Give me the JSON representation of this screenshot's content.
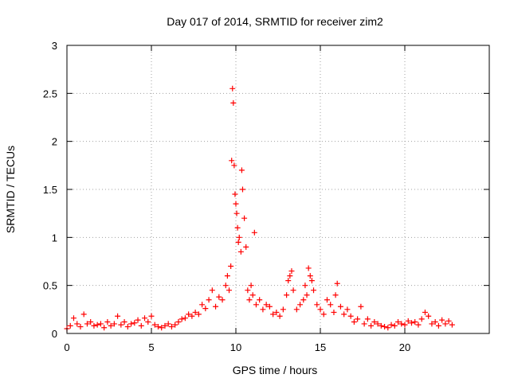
{
  "chart_data": {
    "type": "scatter",
    "title": "Day 017 of 2014, SRMTID for receiver zim2",
    "xlabel": "GPS time / hours",
    "ylabel": "SRMTID / TECUs",
    "xlim": [
      0,
      25
    ],
    "ylim": [
      0,
      3
    ],
    "xticks": [
      0,
      5,
      10,
      15,
      20
    ],
    "xtick_labels": [
      "0",
      "5",
      "10",
      "15",
      "20"
    ],
    "yticks": [
      0,
      0.5,
      1,
      1.5,
      2,
      2.5,
      3
    ],
    "ytick_labels": [
      "0",
      "0.5",
      "1",
      "1.5",
      "2",
      "2.5",
      "3"
    ],
    "grid": true,
    "marker": "plus",
    "color": "#ff0000",
    "series": [
      {
        "name": "SRMTID",
        "x": [
          0.0,
          0.2,
          0.4,
          0.6,
          0.8,
          1.0,
          1.2,
          1.4,
          1.6,
          1.8,
          2.0,
          2.2,
          2.4,
          2.6,
          2.8,
          3.0,
          3.2,
          3.4,
          3.6,
          3.8,
          4.0,
          4.2,
          4.4,
          4.6,
          4.8,
          5.0,
          5.2,
          5.4,
          5.6,
          5.8,
          6.0,
          6.2,
          6.4,
          6.6,
          6.8,
          7.0,
          7.2,
          7.4,
          7.6,
          7.8,
          8.0,
          8.2,
          8.4,
          8.6,
          8.8,
          9.0,
          9.2,
          9.4,
          9.5,
          9.6,
          9.7,
          9.75,
          9.8,
          9.85,
          9.9,
          9.95,
          10.0,
          10.05,
          10.1,
          10.15,
          10.2,
          10.3,
          10.35,
          10.4,
          10.5,
          10.6,
          10.7,
          10.8,
          10.9,
          11.0,
          11.1,
          11.2,
          11.4,
          11.6,
          11.8,
          12.0,
          12.2,
          12.4,
          12.6,
          12.8,
          13.0,
          13.1,
          13.2,
          13.3,
          13.4,
          13.6,
          13.8,
          14.0,
          14.1,
          14.2,
          14.3,
          14.4,
          14.5,
          14.6,
          14.8,
          15.0,
          15.2,
          15.4,
          15.6,
          15.8,
          15.9,
          16.0,
          16.2,
          16.4,
          16.6,
          16.8,
          17.0,
          17.2,
          17.4,
          17.6,
          17.8,
          18.0,
          18.2,
          18.4,
          18.6,
          18.8,
          19.0,
          19.2,
          19.4,
          19.6,
          19.8,
          20.0,
          20.2,
          20.4,
          20.6,
          20.8,
          21.0,
          21.2,
          21.4,
          21.6,
          21.8,
          22.0,
          22.2,
          22.4,
          22.6,
          22.8
        ],
        "y": [
          0.05,
          0.08,
          0.16,
          0.1,
          0.07,
          0.2,
          0.1,
          0.12,
          0.08,
          0.09,
          0.1,
          0.06,
          0.12,
          0.08,
          0.1,
          0.18,
          0.09,
          0.12,
          0.07,
          0.1,
          0.11,
          0.14,
          0.08,
          0.16,
          0.12,
          0.18,
          0.09,
          0.07,
          0.06,
          0.08,
          0.1,
          0.07,
          0.09,
          0.12,
          0.15,
          0.16,
          0.2,
          0.18,
          0.22,
          0.2,
          0.3,
          0.26,
          0.35,
          0.45,
          0.28,
          0.38,
          0.35,
          0.5,
          0.6,
          0.45,
          0.7,
          1.8,
          2.55,
          2.4,
          1.75,
          1.45,
          1.35,
          1.25,
          1.1,
          0.95,
          1.0,
          0.85,
          1.7,
          1.5,
          1.2,
          0.9,
          0.45,
          0.35,
          0.5,
          0.4,
          1.05,
          0.3,
          0.35,
          0.25,
          0.3,
          0.28,
          0.2,
          0.22,
          0.18,
          0.25,
          0.4,
          0.55,
          0.6,
          0.65,
          0.45,
          0.25,
          0.3,
          0.35,
          0.5,
          0.4,
          0.68,
          0.6,
          0.55,
          0.45,
          0.3,
          0.25,
          0.2,
          0.35,
          0.3,
          0.22,
          0.4,
          0.52,
          0.28,
          0.2,
          0.25,
          0.18,
          0.12,
          0.15,
          0.28,
          0.1,
          0.15,
          0.08,
          0.12,
          0.1,
          0.08,
          0.07,
          0.06,
          0.09,
          0.08,
          0.12,
          0.1,
          0.09,
          0.13,
          0.11,
          0.12,
          0.09,
          0.15,
          0.22,
          0.18,
          0.1,
          0.12,
          0.08,
          0.14,
          0.1,
          0.13,
          0.09
        ]
      }
    ]
  }
}
